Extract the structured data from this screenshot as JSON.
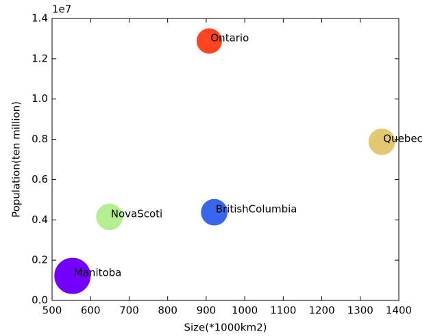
{
  "chart_data": {
    "type": "scatter",
    "xlabel": "Size(*1000km2)",
    "ylabel": "Population(ten million)",
    "y_offset_label": "1e7",
    "labels": [
      "Ontario",
      "Quebec",
      "BritishColumbia",
      "NovaScoti",
      "Manitoba"
    ],
    "x": [
      908,
      1356,
      921,
      649,
      553
    ],
    "values": [
      12880000,
      7880000,
      4380000,
      4150000,
      1220000
    ],
    "sizes": [
      1000,
      1100,
      1100,
      1100,
      2080
    ],
    "colors": [
      "#ff4422",
      "#e2c870",
      "#3a66ee",
      "#b4ee90",
      "#7300ff"
    ],
    "xlim": [
      500,
      1400
    ],
    "xticks": [
      500,
      600,
      700,
      800,
      900,
      1000,
      1100,
      1200,
      1300,
      1400
    ],
    "ylim": [
      0,
      14000000
    ],
    "yticks": [
      {
        "value": 0,
        "label": "0.0"
      },
      {
        "value": 2000000,
        "label": "0.2"
      },
      {
        "value": 4000000,
        "label": "0.4"
      },
      {
        "value": 6000000,
        "label": "0.6"
      },
      {
        "value": 8000000,
        "label": "0.8"
      },
      {
        "value": 10000000,
        "label": "1.0"
      },
      {
        "value": 12000000,
        "label": "1.2"
      },
      {
        "value": 14000000,
        "label": "1.4"
      }
    ]
  }
}
